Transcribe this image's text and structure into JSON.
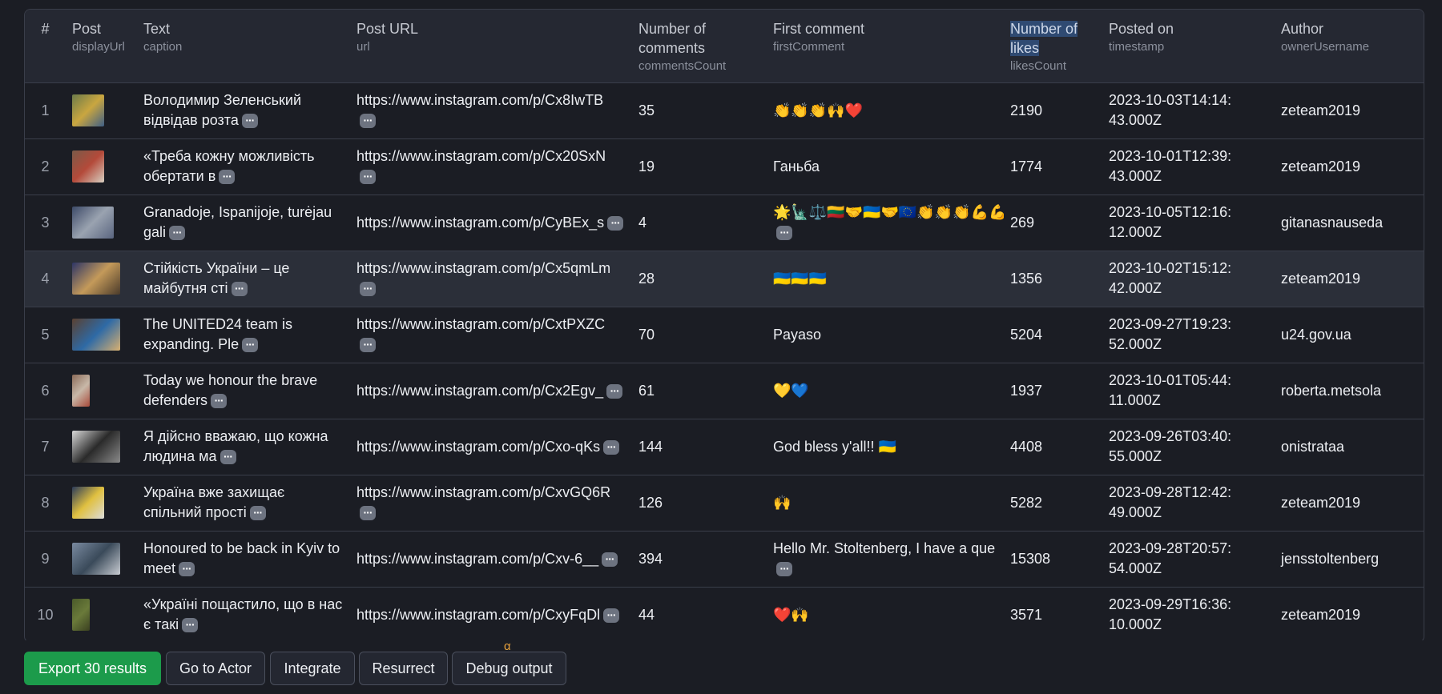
{
  "table": {
    "columns": [
      {
        "title": "#",
        "key": ""
      },
      {
        "title": "Post",
        "key": "displayUrl"
      },
      {
        "title": "Text",
        "key": "caption"
      },
      {
        "title": "Post URL",
        "key": "url"
      },
      {
        "title": "Number of comments",
        "key": "commentsCount"
      },
      {
        "title": "First comment",
        "key": "firstComment"
      },
      {
        "title": "Number of likes",
        "key": "likesCount"
      },
      {
        "title": "Posted on",
        "key": "timestamp"
      },
      {
        "title": "Author",
        "key": "ownerUsername"
      }
    ],
    "selected_column_index": 6,
    "highlighted_row_index": 3,
    "rows": [
      {
        "index": "1",
        "thumb_colors": [
          "#6b7a4a",
          "#c9a640",
          "#3f5f86"
        ],
        "caption": "Володимир Зеленський відвідав розта",
        "url": "https://www.instagram.com/p/Cx8IwTB",
        "comments": "35",
        "first_comment": "👏👏👏🙌❤️",
        "likes": "2190",
        "posted": "2023-10-03T14:14:43.000Z",
        "author": "zeteam2019",
        "caption_more": true,
        "url_more": true,
        "comment_more": false
      },
      {
        "index": "2",
        "thumb_colors": [
          "#7a5a48",
          "#b44a3a",
          "#d8d0c2"
        ],
        "caption": "«Треба кожну можливість обертати в",
        "url": "https://www.instagram.com/p/Cx20SxN",
        "comments": "19",
        "first_comment": "Ганьба",
        "likes": "1774",
        "posted": "2023-10-01T12:39:43.000Z",
        "author": "zeteam2019",
        "caption_more": true,
        "url_more": true,
        "comment_more": false
      },
      {
        "index": "3",
        "thumb_colors": [
          "#3d4a68",
          "#9aa3b0",
          "#5a6580"
        ],
        "caption": "Granadoje, Ispanijoje, turėjau gali",
        "url": "https://www.instagram.com/p/CyBEx_s",
        "comments": "4",
        "first_comment": "🌟🗽⚖️🇱🇹🤝🇺🇦🤝🇪🇺👏👏👏💪💪💪🤍",
        "likes": "269",
        "posted": "2023-10-05T12:16:12.000Z",
        "author": "gitanasnauseda",
        "caption_more": true,
        "url_more": false,
        "comment_more": true
      },
      {
        "index": "4",
        "thumb_colors": [
          "#2d3566",
          "#c49a5a",
          "#4a3a2a"
        ],
        "caption": "Стійкість України – це майбутня сті",
        "url": "https://www.instagram.com/p/Cx5qmLm",
        "comments": "28",
        "first_comment": "🇺🇦🇺🇦🇺🇦",
        "likes": "1356",
        "posted": "2023-10-02T15:12:42.000Z",
        "author": "zeteam2019",
        "caption_more": true,
        "url_more": true,
        "comment_more": false
      },
      {
        "index": "5",
        "thumb_colors": [
          "#5a4030",
          "#2e6aa6",
          "#d8b070"
        ],
        "caption": "The UNITED24 team is expanding. Ple",
        "url": "https://www.instagram.com/p/CxtPXZC",
        "comments": "70",
        "first_comment": "Payaso",
        "likes": "5204",
        "posted": "2023-09-27T19:23:52.000Z",
        "author": "u24.gov.ua",
        "caption_more": true,
        "url_more": true,
        "comment_more": false
      },
      {
        "index": "6",
        "thumb_colors": [
          "#8a6a58",
          "#c8b8a8",
          "#a84a3a"
        ],
        "caption": "Today we honour the brave defenders",
        "url": "https://www.instagram.com/p/Cx2Egv_",
        "comments": "61",
        "first_comment": "💛💙",
        "likes": "1937",
        "posted": "2023-10-01T05:44:11.000Z",
        "author": "roberta.metsola",
        "caption_more": true,
        "url_more": false,
        "comment_more": false
      },
      {
        "index": "7",
        "thumb_colors": [
          "#d8d8d8",
          "#2a2a2a",
          "#8a8a8a"
        ],
        "caption": "Я дійсно вважаю, що кожна людина ма",
        "url": "https://www.instagram.com/p/Cxo-qKs",
        "comments": "144",
        "first_comment": "God bless y'all!! 🇺🇦",
        "likes": "4408",
        "posted": "2023-09-26T03:40:55.000Z",
        "author": "onistrataa",
        "caption_more": true,
        "url_more": false,
        "comment_more": false
      },
      {
        "index": "8",
        "thumb_colors": [
          "#2a3a5a",
          "#e0c040",
          "#dcdcdc"
        ],
        "caption": "Україна вже захищає спільний прості",
        "url": "https://www.instagram.com/p/CxvGQ6R",
        "comments": "126",
        "first_comment": "🙌",
        "likes": "5282",
        "posted": "2023-09-28T12:42:49.000Z",
        "author": "zeteam2019",
        "caption_more": true,
        "url_more": true,
        "comment_more": false
      },
      {
        "index": "9",
        "thumb_colors": [
          "#7a8aa0",
          "#3a4a5a",
          "#c8ccd2"
        ],
        "caption": "Honoured to be back in Kyiv to meet",
        "url": "https://www.instagram.com/p/Cxv-6__",
        "comments": "394",
        "first_comment": "Hello Mr. Stoltenberg, I have a que",
        "likes": "15308",
        "posted": "2023-09-28T20:57:54.000Z",
        "author": "jensstoltenberg",
        "caption_more": true,
        "url_more": false,
        "comment_more": true
      },
      {
        "index": "10",
        "thumb_colors": [
          "#4a5a2a",
          "#6a7a3a",
          "#3a4020"
        ],
        "caption": "«Україні пощастило, що в нас є такі",
        "url": "https://www.instagram.com/p/CxyFqDl",
        "comments": "44",
        "first_comment": "❤️🙌",
        "likes": "3571",
        "posted": "2023-09-29T16:36:10.000Z",
        "author": "zeteam2019",
        "caption_more": true,
        "url_more": false,
        "comment_more": false
      }
    ]
  },
  "footer": {
    "buttons": [
      {
        "label": "Export 30 results",
        "name": "export-results-button",
        "primary": true
      },
      {
        "label": "Go to Actor",
        "name": "go-to-actor-button",
        "primary": false
      },
      {
        "label": "Integrate",
        "name": "integrate-button",
        "primary": false
      },
      {
        "label": "Resurrect",
        "name": "resurrect-button",
        "primary": false
      },
      {
        "label": "Debug output",
        "name": "debug-output-button",
        "primary": false
      }
    ],
    "alpha_badge": "α"
  },
  "colors": {
    "primary_button": "#1c9b4b",
    "alpha_badge": "#e7a13c",
    "header_bg": "#252832",
    "page_bg": "#1b1d24"
  }
}
